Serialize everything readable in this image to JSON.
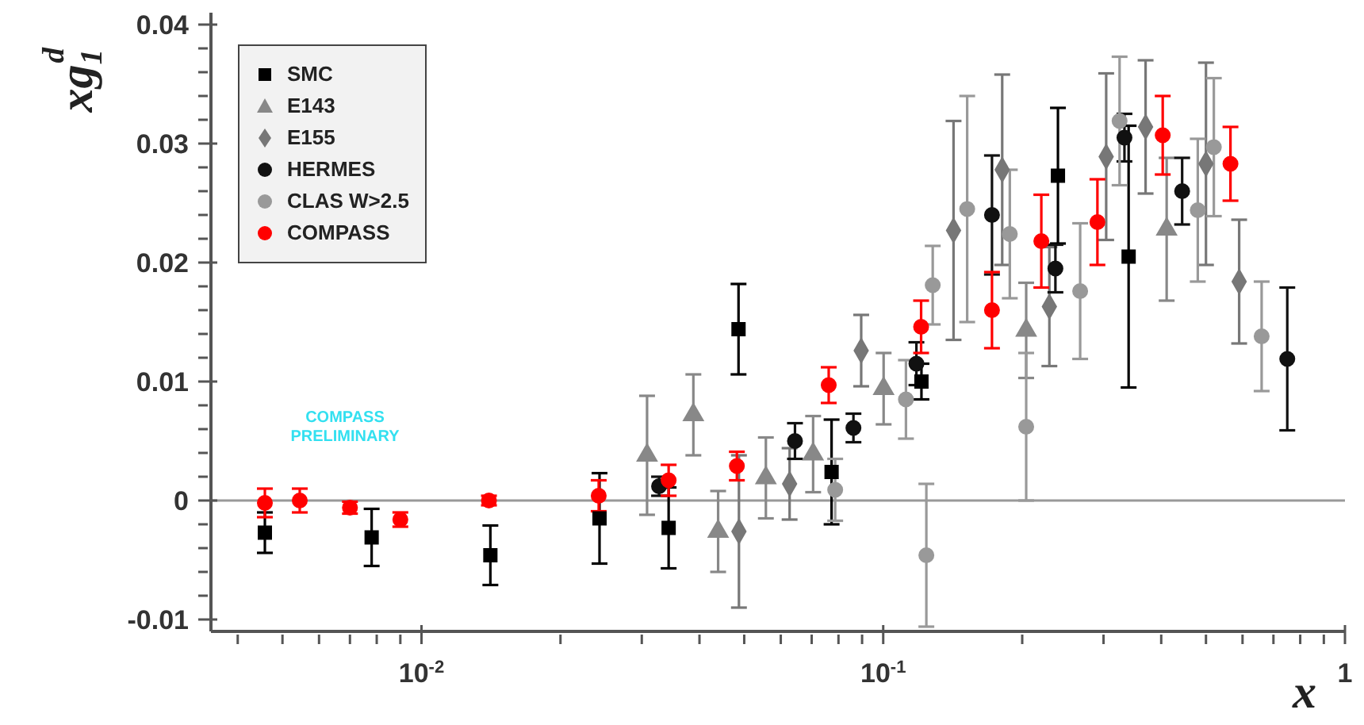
{
  "chart_data": {
    "type": "scatter",
    "xlabel": "x",
    "ylabel": "xg$_{1}$$^{d}$",
    "log": "x",
    "grid": false,
    "legend": "top left",
    "xlim": [
      0.0035,
      1
    ],
    "ylim": [
      -0.011,
      0.041
    ],
    "xticks": [
      {
        "value": 0.004,
        "label": null
      },
      {
        "value": 0.005,
        "label": null
      },
      {
        "value": 0.006,
        "label": null
      },
      {
        "value": 0.007,
        "label": null
      },
      {
        "value": 0.008,
        "label": null
      },
      {
        "value": 0.009,
        "label": null
      },
      {
        "value": 0.01,
        "label": "10$^{-2}$"
      },
      {
        "value": 0.02,
        "label": null
      },
      {
        "value": 0.03,
        "label": null
      },
      {
        "value": 0.04,
        "label": null
      },
      {
        "value": 0.05,
        "label": null
      },
      {
        "value": 0.06,
        "label": null
      },
      {
        "value": 0.07,
        "label": null
      },
      {
        "value": 0.08,
        "label": null
      },
      {
        "value": 0.09,
        "label": null
      },
      {
        "value": 0.1,
        "label": "10$^{-1}$"
      },
      {
        "value": 0.2,
        "label": null
      },
      {
        "value": 0.3,
        "label": null
      },
      {
        "value": 0.4,
        "label": null
      },
      {
        "value": 0.5,
        "label": null
      },
      {
        "value": 0.6,
        "label": null
      },
      {
        "value": 0.7,
        "label": null
      },
      {
        "value": 0.8,
        "label": null
      },
      {
        "value": 0.9,
        "label": null
      },
      1
    ],
    "yticks": [
      -0.01,
      {
        "value": -0.008,
        "label": null
      },
      {
        "value": -0.006,
        "label": null
      },
      {
        "value": -0.004,
        "label": null
      },
      {
        "value": -0.002,
        "label": null
      },
      0,
      {
        "value": 0.002,
        "label": null
      },
      {
        "value": 0.004,
        "label": null
      },
      {
        "value": 0.006,
        "label": null
      },
      {
        "value": 0.008,
        "label": null
      },
      0.01,
      {
        "value": 0.012,
        "label": null
      },
      {
        "value": 0.014,
        "label": null
      },
      {
        "value": 0.016,
        "label": null
      },
      {
        "value": 0.018,
        "label": null
      },
      0.02,
      {
        "value": 0.022,
        "label": null
      },
      {
        "value": 0.024,
        "label": null
      },
      {
        "value": 0.026,
        "label": null
      },
      {
        "value": 0.028,
        "label": null
      },
      0.03,
      {
        "value": 0.032,
        "label": null
      },
      {
        "value": 0.034,
        "label": null
      },
      {
        "value": 0.036,
        "label": null
      },
      {
        "value": 0.038,
        "label": null
      },
      0.04
    ],
    "ref_lines": [
      {
        "axis": "y",
        "value": 0,
        "color": "#999999"
      }
    ],
    "annotations": [
      "COMPASS PRELIMINARY"
    ],
    "series": [
      {
        "name": "SMC",
        "color": "#000000",
        "marker": "square",
        "x": [
          0.00458,
          0.0078,
          0.0141,
          0.0243,
          0.0343,
          0.0486,
          0.0773,
          0.121,
          0.239,
          0.34
        ],
        "values": [
          -0.0027,
          -0.0031,
          -0.0046,
          -0.0015,
          -0.0023,
          0.0144,
          0.0024,
          0.01,
          0.0273,
          0.0205
        ],
        "errors": [
          0.0017,
          0.0024,
          0.0025,
          0.0038,
          0.0034,
          0.0038,
          0.0044,
          0.0015,
          0.0057,
          0.011
        ]
      },
      {
        "name": "E143",
        "color": "#888888",
        "marker": "triangle",
        "x": [
          0.0308,
          0.0388,
          0.0439,
          0.0557,
          0.0705,
          0.1002,
          0.204,
          0.411
        ],
        "values": [
          0.0038,
          0.0072,
          -0.0026,
          0.0019,
          0.0039,
          0.0094,
          0.0143,
          0.0228
        ],
        "errors": [
          0.005,
          0.0034,
          0.0034,
          0.0034,
          0.0032,
          0.003,
          0.004,
          0.006
        ]
      },
      {
        "name": "E155",
        "color": "#777777",
        "marker": "diamond",
        "x": [
          0.0487,
          0.0627,
          0.0896,
          0.142,
          0.181,
          0.229,
          0.304,
          0.37,
          0.5,
          0.59
        ],
        "values": [
          -0.0026,
          0.0014,
          0.0126,
          0.0227,
          0.0278,
          0.0163,
          0.0289,
          0.0314,
          0.0283,
          0.0184
        ],
        "errors": [
          0.0064,
          0.003,
          0.003,
          0.0092,
          0.008,
          0.005,
          0.007,
          0.0056,
          0.0085,
          0.0052
        ]
      },
      {
        "name": "HERMES",
        "color": "#111111",
        "marker": "circle",
        "x": [
          0.0327,
          0.0644,
          0.0862,
          0.118,
          0.172,
          0.236,
          0.333,
          0.444,
          0.75
        ],
        "values": [
          0.0012,
          0.005,
          0.0061,
          0.0115,
          0.024,
          0.0195,
          0.0305,
          0.026,
          0.0119
        ],
        "errors": [
          0.0008,
          0.0015,
          0.0012,
          0.0018,
          0.005,
          0.002,
          0.002,
          0.0028,
          0.006
        ]
      },
      {
        "name": "CLAS W>2.5",
        "color": "#999999",
        "marker": "circle",
        "x": [
          0.0787,
          0.112,
          0.124,
          0.128,
          0.152,
          0.188,
          0.204,
          0.267,
          0.325,
          0.48,
          0.52,
          0.66
        ],
        "values": [
          0.0009,
          0.0085,
          -0.0046,
          0.0181,
          0.0245,
          0.0224,
          0.0062,
          0.0176,
          0.0319,
          0.0244,
          0.0297,
          0.0138
        ],
        "errors": [
          0.0026,
          0.0033,
          0.006,
          0.0033,
          0.0095,
          0.0054,
          0.0062,
          0.0057,
          0.0054,
          0.006,
          0.0058,
          0.0046
        ]
      },
      {
        "name": "COMPASS",
        "color": "#ff0000",
        "marker": "circle",
        "x": [
          0.00458,
          0.00545,
          0.007,
          0.009,
          0.014,
          0.0242,
          0.0343,
          0.0482,
          0.0762,
          0.1208,
          0.172,
          0.22,
          0.291,
          0.403,
          0.565
        ],
        "values": [
          -0.0002,
          0,
          -0.0006,
          -0.0016,
          0,
          0.0004,
          0.0017,
          0.0029,
          0.0097,
          0.0146,
          0.016,
          0.0218,
          0.0234,
          0.0307,
          0.0283
        ],
        "errors": [
          0.0012,
          0.001,
          0.0005,
          0.0006,
          0.0004,
          0.0013,
          0.0013,
          0.0012,
          0.0015,
          0.0022,
          0.0032,
          0.0039,
          0.0036,
          0.0033,
          0.0031
        ]
      }
    ]
  }
}
